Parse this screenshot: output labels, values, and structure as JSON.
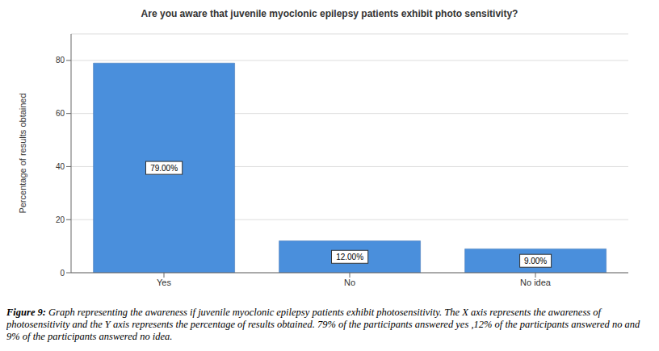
{
  "chart_data": {
    "type": "bar",
    "title": "Are you aware that juvenile myoclonic epilepsy patients exhibit photo sensitivity?",
    "y_label": "Percentage of results obtained",
    "categories": [
      "Yes",
      "No",
      "No idea"
    ],
    "values": [
      79,
      12,
      9
    ],
    "value_labels": [
      "79.00%",
      "12.00%",
      "9.00%"
    ],
    "data_labels": true,
    "color": "#4a8fdc",
    "ylim": [
      0,
      90
    ],
    "yticks": [
      0,
      20,
      40,
      60,
      80
    ],
    "grid": true,
    "caption_label": "Figure 9:",
    "caption": "Graph representing the awareness if juvenile myoclonic epilepsy patients exhibit photosensitivity. The X axis represents the awareness of photosensitivity and the Y axis represents the percentage of results obtained. 79% of the participants answered yes ,12% of the participants answered no and 9% of the participants answered no idea."
  }
}
